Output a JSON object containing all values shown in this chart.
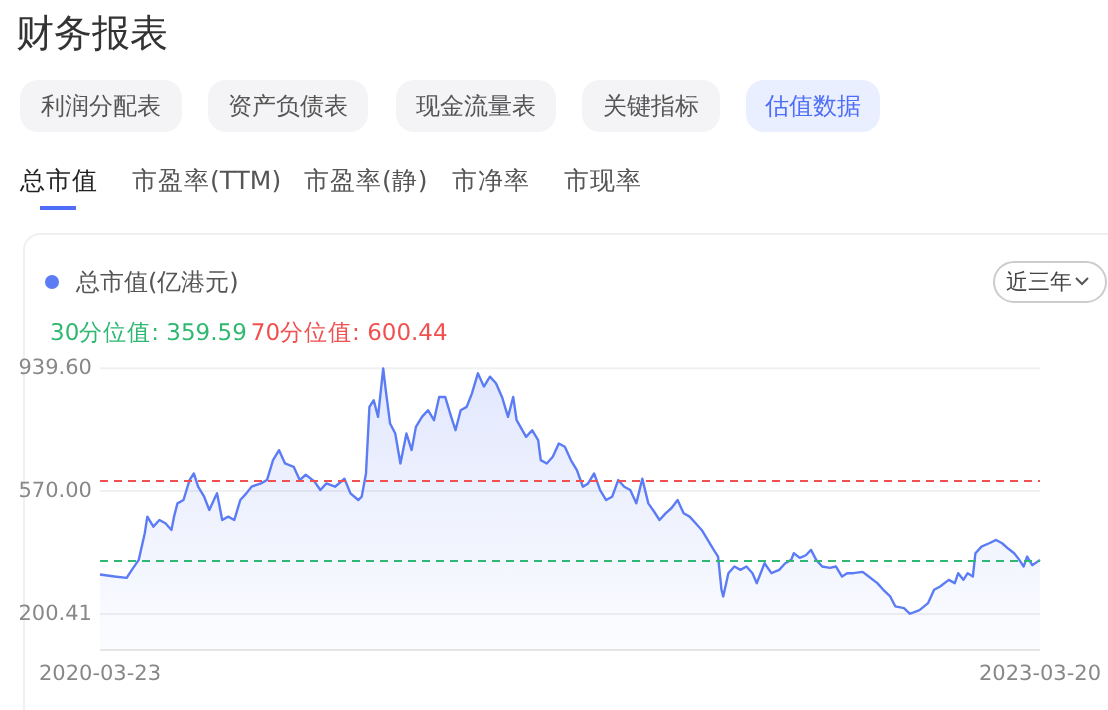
{
  "chart_data": {
    "type": "area",
    "title": "财务报表",
    "annotations": [
      "利润分配表",
      "资产负债表",
      "现金流量表",
      "关键指标",
      "估值数据",
      "总市值",
      "市盈率(TTM)",
      "市盈率(静)",
      "市净率",
      "市现率",
      "近三年"
    ],
    "legend": "top left",
    "grid": "y",
    "ylim": [
      92,
      940
    ],
    "yticks": [
      {
        "value": 939.6,
        "label": "939.60"
      },
      {
        "value": 570,
        "label": "570.00"
      },
      {
        "value": 200.41,
        "label": "200.41"
      }
    ],
    "xlim": [
      "2020-03-23",
      "2023-03-20"
    ],
    "xticks": [
      {
        "value": "2020-03-23",
        "label": "2020-03-23"
      },
      {
        "value": "2023-03-20",
        "label": "2023-03-20"
      }
    ],
    "ref_lines": [
      {
        "axis": "y",
        "value": 359.59,
        "label": "30分位值: 359.59",
        "color": "#2eb872",
        "line_style": "dashed"
      },
      {
        "axis": "y",
        "value": 600.44,
        "label": "70分位值: 600.44",
        "color": "#f0504f",
        "line_style": "dashed"
      }
    ],
    "series": [
      {
        "name": "总市值(亿港元)",
        "color": "#5b7cf5",
        "x": [
          "2020-03-23",
          "2020-04-09",
          "2020-04-23",
          "2020-04-29",
          "2020-05-07",
          "2020-05-14",
          "2020-05-17",
          "2020-05-24",
          "2020-05-31",
          "2020-06-07",
          "2020-06-14",
          "2020-06-17",
          "2020-06-21",
          "2020-06-28",
          "2020-07-05",
          "2020-07-10",
          "2020-07-15",
          "2020-07-22",
          "2020-07-28",
          "2020-08-04",
          "2020-08-06",
          "2020-08-12",
          "2020-08-19",
          "2020-08-26",
          "2020-09-02",
          "2020-09-09",
          "2020-09-15",
          "2020-09-26",
          "2020-10-03",
          "2020-10-10",
          "2020-10-17",
          "2020-10-24",
          "2020-11-03",
          "2020-11-10",
          "2020-11-17",
          "2020-11-27",
          "2020-12-04",
          "2020-12-11",
          "2020-12-21",
          "2021-01-01",
          "2021-01-08",
          "2021-01-17",
          "2021-01-21",
          "2021-01-26",
          "2021-01-30",
          "2021-02-04",
          "2021-02-09",
          "2021-02-15",
          "2021-02-18",
          "2021-02-23",
          "2021-03-01",
          "2021-03-07",
          "2021-03-14",
          "2021-03-20",
          "2021-03-25",
          "2021-04-01",
          "2021-04-08",
          "2021-04-15",
          "2021-04-21",
          "2021-04-28",
          "2021-05-05",
          "2021-05-10",
          "2021-05-16",
          "2021-05-23",
          "2021-05-29",
          "2021-06-05",
          "2021-06-12",
          "2021-06-19",
          "2021-06-26",
          "2021-07-03",
          "2021-07-10",
          "2021-07-16",
          "2021-07-20",
          "2021-07-31",
          "2021-08-07",
          "2021-08-14",
          "2021-08-17",
          "2021-08-24",
          "2021-08-31",
          "2021-09-07",
          "2021-09-14",
          "2021-09-21",
          "2021-09-28",
          "2021-10-05",
          "2021-10-11",
          "2021-10-18",
          "2021-10-25",
          "2021-11-01",
          "2021-11-08",
          "2021-11-15",
          "2021-11-22",
          "2021-11-29",
          "2021-12-06",
          "2021-12-13",
          "2021-12-20",
          "2021-12-27",
          "2022-01-02",
          "2022-01-09",
          "2022-01-16",
          "2022-01-23",
          "2022-01-30",
          "2022-02-06",
          "2022-02-13",
          "2022-02-20",
          "2022-02-27",
          "2022-03-06",
          "2022-03-11",
          "2022-03-15",
          "2022-03-17",
          "2022-03-23",
          "2022-03-30",
          "2022-04-06",
          "2022-04-13",
          "2022-04-20",
          "2022-04-25",
          "2022-05-04",
          "2022-05-12",
          "2022-05-21",
          "2022-05-28",
          "2022-06-04",
          "2022-06-07",
          "2022-06-14",
          "2022-06-21",
          "2022-06-27",
          "2022-07-03",
          "2022-07-10",
          "2022-07-19",
          "2022-07-26",
          "2022-08-02",
          "2022-08-08",
          "2022-08-15",
          "2022-08-26",
          "2022-09-02",
          "2022-09-12",
          "2022-09-19",
          "2022-09-27",
          "2022-10-03",
          "2022-10-13",
          "2022-10-20",
          "2022-10-31",
          "2022-11-10",
          "2022-11-17",
          "2022-11-24",
          "2022-12-04",
          "2022-12-11",
          "2022-12-15",
          "2022-12-21",
          "2022-12-26",
          "2023-01-01",
          "2023-01-04",
          "2023-01-11",
          "2023-01-20",
          "2023-01-28",
          "2023-02-04",
          "2023-02-11",
          "2023-02-18",
          "2023-02-24",
          "2023-03-01",
          "2023-03-05",
          "2023-03-11",
          "2023-03-20"
        ],
        "values": [
          319,
          313,
          309,
          333,
          363,
          443,
          493,
          463,
          483,
          473,
          453,
          493,
          533,
          543,
          603,
          623,
          583,
          553,
          513,
          553,
          563,
          483,
          493,
          483,
          543,
          563,
          583,
          593,
          603,
          663,
          693,
          653,
          643,
          603,
          619,
          599,
          573,
          593,
          583,
          607,
          563,
          543,
          553,
          623,
          823,
          843,
          793,
          939,
          873,
          773,
          743,
          653,
          743,
          693,
          763,
          793,
          813,
          783,
          853,
          853,
          793,
          753,
          813,
          823,
          863,
          924,
          884,
          914,
          894,
          853,
          793,
          853,
          783,
          733,
          753,
          723,
          663,
          653,
          673,
          713,
          703,
          663,
          633,
          583,
          593,
          623,
          573,
          543,
          553,
          603,
          583,
          573,
          533,
          607,
          533,
          507,
          483,
          503,
          519,
          543,
          503,
          493,
          473,
          453,
          423,
          393,
          373,
          273,
          253,
          323,
          343,
          333,
          343,
          323,
          293,
          353,
          323,
          333,
          353,
          363,
          383,
          369,
          377,
          393,
          363,
          343,
          339,
          343,
          313,
          323,
          323,
          327,
          313,
          293,
          273,
          253,
          223,
          218,
          201,
          212,
          233,
          273,
          283,
          303,
          293,
          323,
          303,
          323,
          313,
          383,
          403,
          413,
          423,
          413,
          397,
          383,
          363,
          343,
          373,
          347,
          363
        ]
      }
    ]
  }
}
